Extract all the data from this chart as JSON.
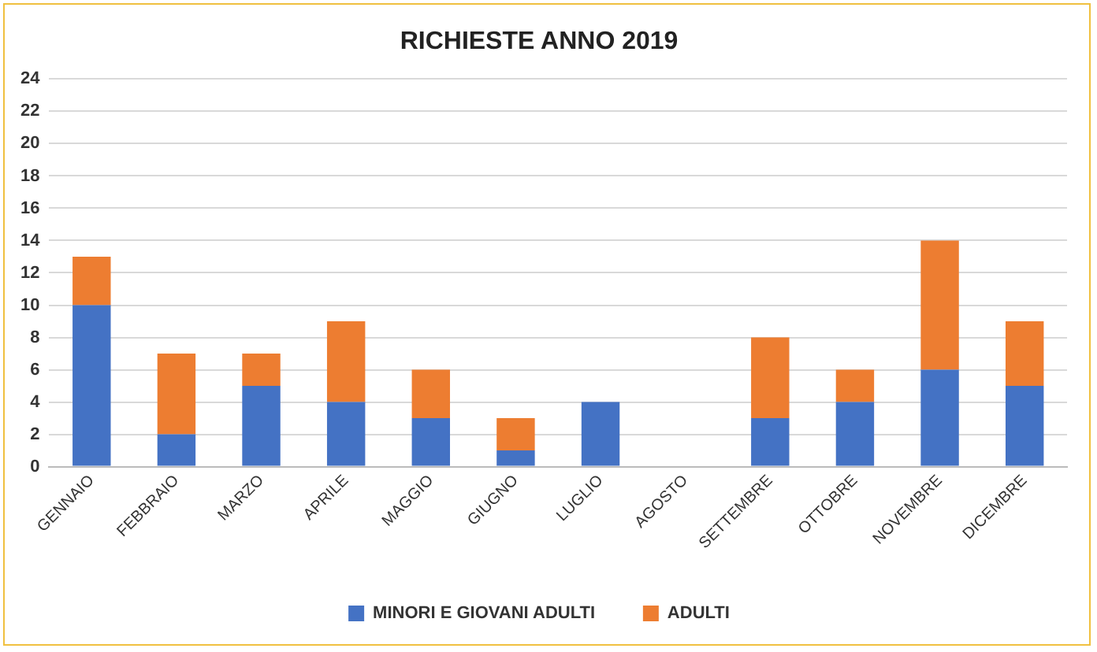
{
  "chart_data": {
    "type": "bar",
    "title": "RICHIESTE ANNO 2019",
    "stacked": true,
    "categories": [
      "GENNAIO",
      "FEBBRAIO",
      "MARZO",
      "APRILE",
      "MAGGIO",
      "GIUGNO",
      "LUGLIO",
      "AGOSTO",
      "SETTEMBRE",
      "OTTOBRE",
      "NOVEMBRE",
      "DICEMBRE"
    ],
    "series": [
      {
        "name": "MINORI E GIOVANI ADULTI",
        "color": "#4472c4",
        "values": [
          10,
          2,
          5,
          4,
          3,
          1,
          4,
          0,
          3,
          4,
          6,
          5
        ]
      },
      {
        "name": "ADULTI",
        "color": "#ed7d31",
        "values": [
          3,
          5,
          2,
          5,
          3,
          2,
          0,
          0,
          5,
          2,
          8,
          4
        ]
      }
    ],
    "ylim": [
      0,
      24
    ],
    "yticks": [
      0,
      2,
      4,
      6,
      8,
      10,
      12,
      14,
      16,
      18,
      20,
      22,
      24
    ],
    "grid": "y",
    "legend": "bottom"
  }
}
